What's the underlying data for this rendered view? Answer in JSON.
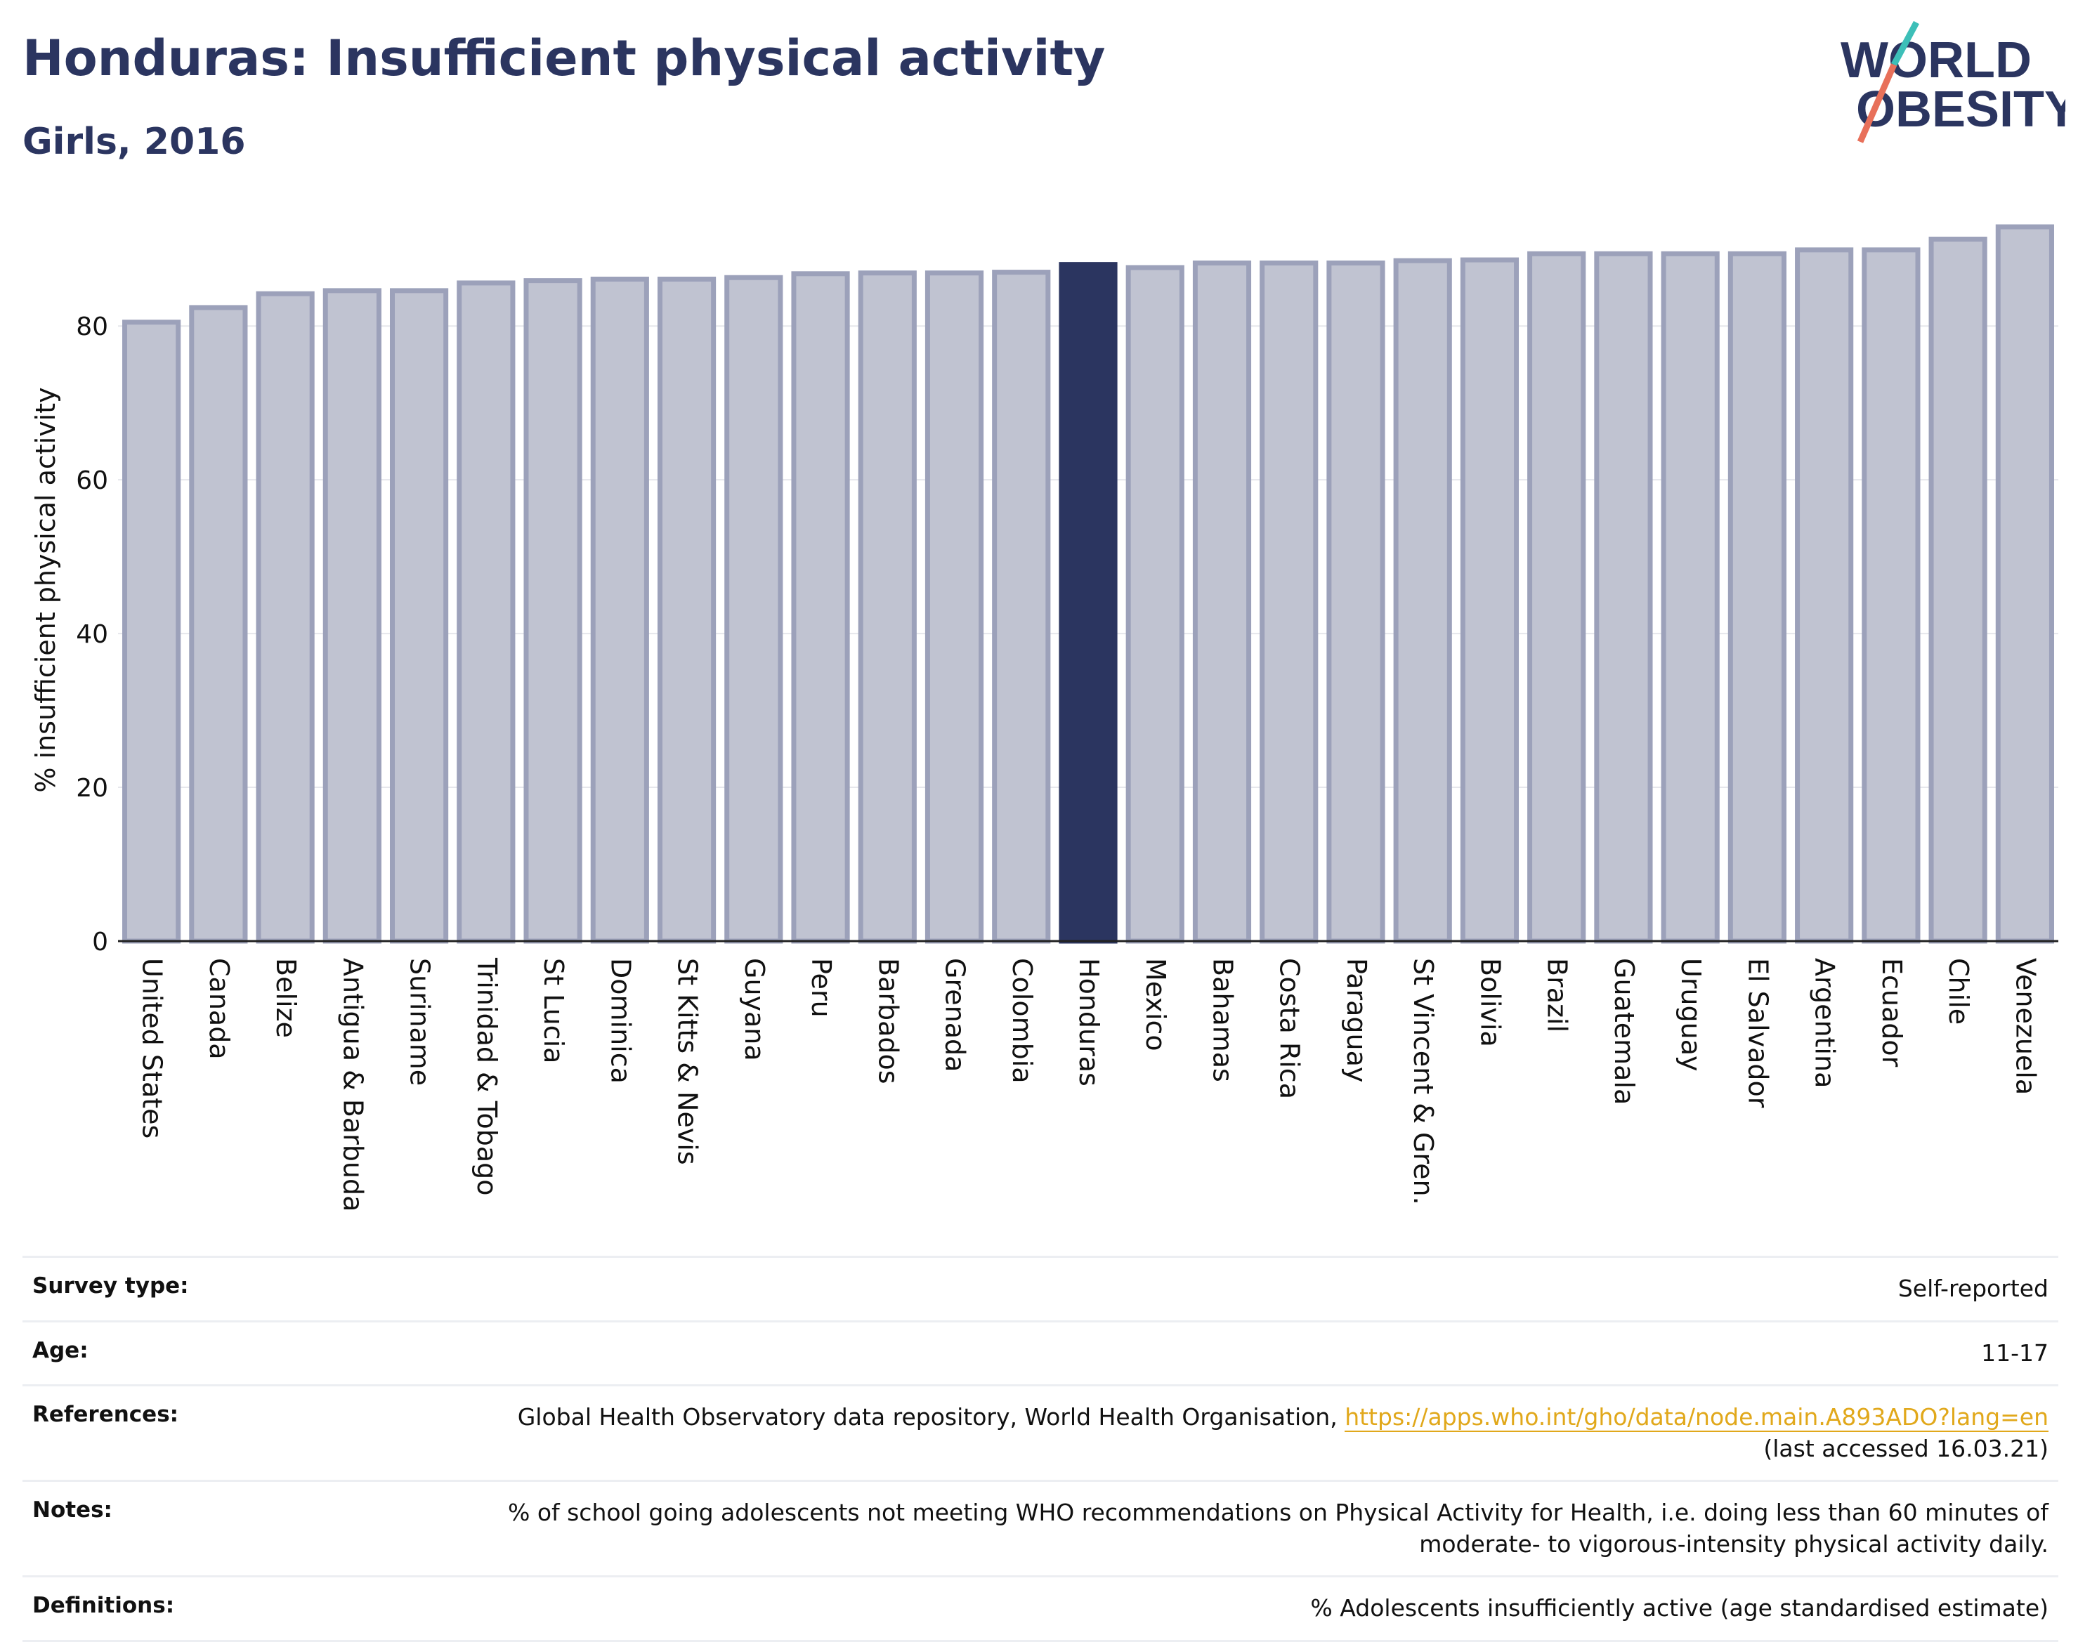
{
  "header": {
    "title": "Honduras: Insufficient physical activity",
    "subtitle": "Girls, 2016",
    "logo_line1": "WORLD",
    "logo_line2": "OBESITY"
  },
  "chart_data": {
    "type": "bar",
    "title": "Honduras: Insufficient physical activity",
    "subtitle": "Girls, 2016",
    "ylabel": "% insufficient physical activity",
    "xlabel": "",
    "ylim": [
      0,
      95
    ],
    "yticks": [
      0,
      20,
      40,
      60,
      80
    ],
    "grid": true,
    "highlight": "Honduras",
    "categories": [
      "United States",
      "Canada",
      "Belize",
      "Antigua & Barbuda",
      "Suriname",
      "Trinidad & Tobago",
      "St Lucia",
      "Dominica",
      "St Kitts & Nevis",
      "Guyana",
      "Peru",
      "Barbados",
      "Grenada",
      "Colombia",
      "Honduras",
      "Mexico",
      "Bahamas",
      "Costa Rica",
      "Paraguay",
      "St Vincent & Gren.",
      "Bolivia",
      "Brazil",
      "Guatemala",
      "Uruguay",
      "El Salvador",
      "Argentina",
      "Ecuador",
      "Chile",
      "Venezuela"
    ],
    "values": [
      80.5,
      82.4,
      84.2,
      84.6,
      84.6,
      85.6,
      85.9,
      86.1,
      86.1,
      86.3,
      86.8,
      86.9,
      86.9,
      87.0,
      88.0,
      87.6,
      88.2,
      88.2,
      88.2,
      88.5,
      88.6,
      89.4,
      89.4,
      89.4,
      89.4,
      89.9,
      89.9,
      91.3,
      92.9
    ]
  },
  "colors": {
    "bar": "#c0c3d1",
    "bar_border": "#9ca1ba",
    "highlight": "#2b3560",
    "title": "#2b3560",
    "link": "#e1a81b",
    "logo_teal": "#3dbfb8",
    "logo_coral": "#e8705a"
  },
  "info": {
    "survey_type_label": "Survey type:",
    "survey_type_value": "Self-reported",
    "age_label": "Age:",
    "age_value": "11-17",
    "references_label": "References:",
    "references_text": "Global Health Observatory data repository, World Health Organisation, ",
    "references_link": "https://apps.who.int/gho/data/node.main.A893ADO?lang=en",
    "references_accessed": "(last accessed 16.03.21)",
    "notes_label": "Notes:",
    "notes_value": "% of school going adolescents not meeting WHO recommendations on Physical Activity for Health, i.e. doing less than 60 minutes of moderate- to vigorous-intensity physical activity daily.",
    "definitions_label": "Definitions:",
    "definitions_value": "% Adolescents insufficiently active (age standardised estimate)"
  }
}
